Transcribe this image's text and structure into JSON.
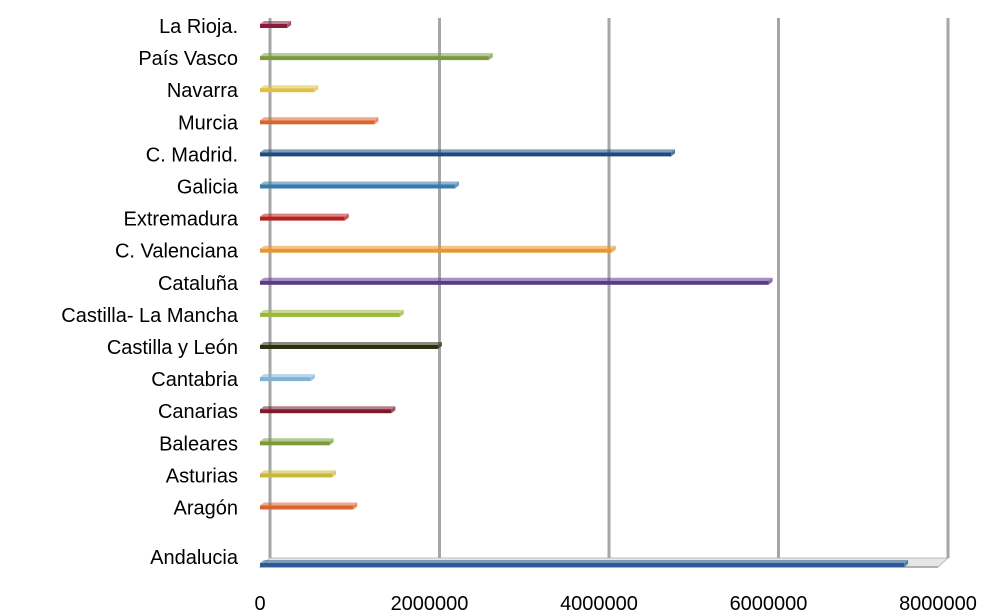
{
  "chart_data": {
    "type": "bar",
    "orientation": "horizontal",
    "categories": [
      "Andalucia",
      "Aragón",
      "Asturias",
      "Baleares",
      "Canarias",
      "Cantabria",
      "Castilla y León",
      "Castilla- La Mancha",
      "Cataluña",
      "C. Valenciana",
      "Extremadura",
      "Galicia",
      "C. Madrid.",
      "Murcia",
      "Navarra",
      "País Vasco",
      "La Rioja."
    ],
    "values": [
      7600000,
      1100000,
      850000,
      820000,
      1550000,
      600000,
      2100000,
      1650000,
      6000000,
      4150000,
      1000000,
      2300000,
      4850000,
      1350000,
      640000,
      2700000,
      320000
    ],
    "colors": [
      "#2a5a96",
      "#d9642e",
      "#c8b83a",
      "#7a9a3a",
      "#7a1a2c",
      "#7fb2d8",
      "#2a3010",
      "#9ab83a",
      "#5b3a8a",
      "#e9962e",
      "#b8201e",
      "#3a7aaa",
      "#1e4a7e",
      "#d9642e",
      "#e0c040",
      "#7a9a3a",
      "#8a1a3a"
    ],
    "xlim": [
      0,
      8000000
    ],
    "x_ticks": [
      "0",
      "2000000",
      "4000000",
      "6000000",
      "8000000"
    ],
    "x_tick_values": [
      0,
      2000000,
      4000000,
      6000000,
      8000000
    ],
    "grid": "vertical",
    "title": "",
    "xlabel": "",
    "ylabel": ""
  }
}
